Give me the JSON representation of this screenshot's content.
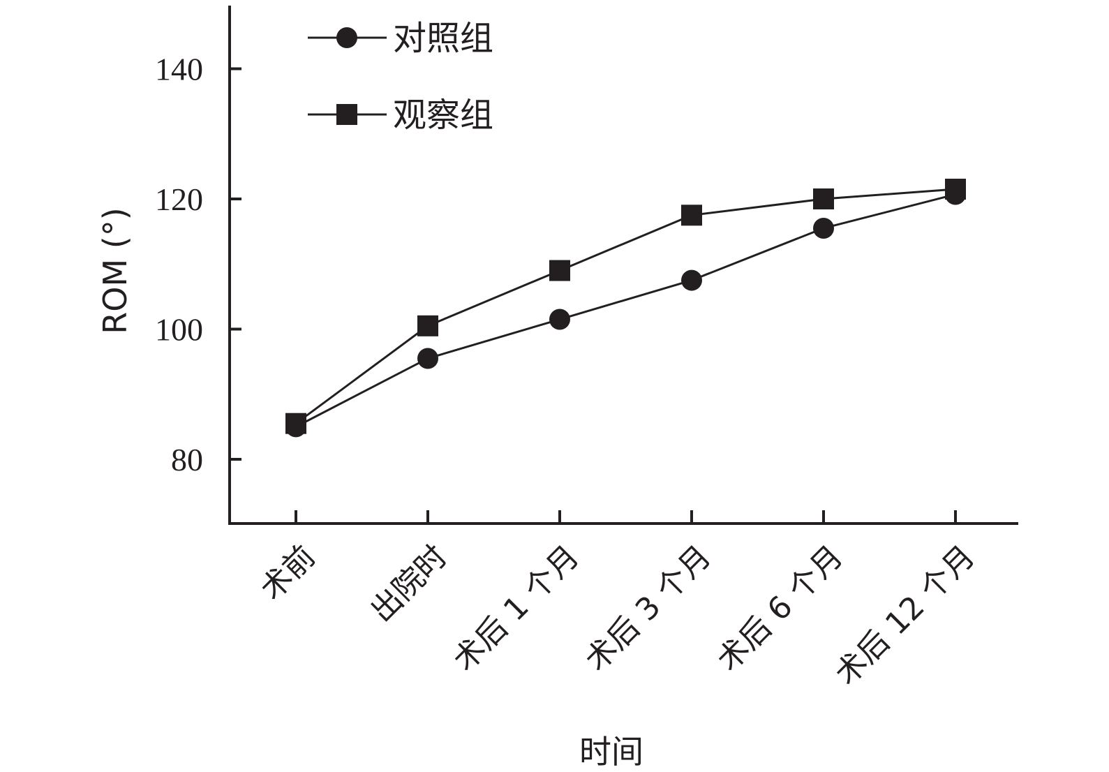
{
  "chart_data": {
    "type": "line",
    "categories": [
      "术前",
      "出院时",
      "术后 1 个月",
      "术后 3 个月",
      "术后 6 个月",
      "术后 12 个月"
    ],
    "series": [
      {
        "name": "对照组",
        "marker": "circle",
        "values": [
          85.0,
          95.5,
          101.5,
          107.5,
          115.5,
          120.7
        ]
      },
      {
        "name": "观察组",
        "marker": "square",
        "values": [
          85.5,
          100.5,
          109.0,
          117.5,
          120.0,
          121.5
        ]
      }
    ],
    "xlabel": "时间",
    "ylabel": "ROM (°)",
    "ylim": [
      70,
      150
    ],
    "yticks": [
      80,
      100,
      120,
      140
    ],
    "grid": false,
    "legend": "top-left",
    "color": "#231f20"
  }
}
